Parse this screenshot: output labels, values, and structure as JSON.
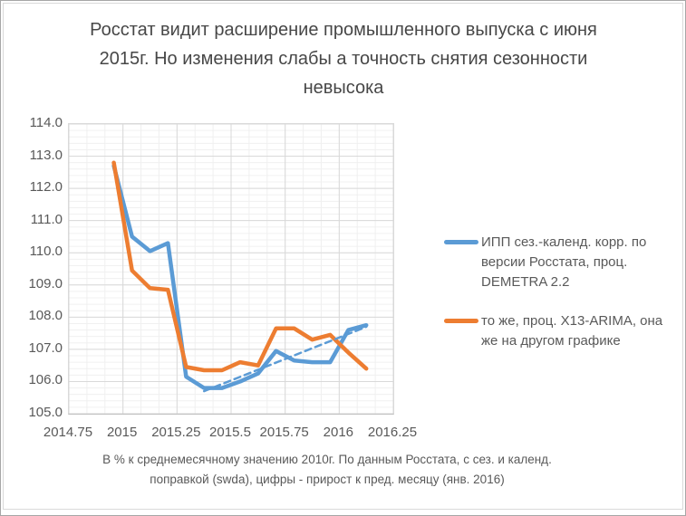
{
  "title": "Росстат видит расширение промышленного выпуска с июня 2015г. Но изменения слабы а точность снятия сезонности невысока",
  "footnote": {
    "line1": "В % к среднемесячному значению 2010г. По данным Росстата, с сез. и календ.",
    "line2": "поправкой (swda), цифры - прирост к пред. месяцу (янв. 2016)"
  },
  "legend": {
    "position": "right",
    "items": [
      {
        "label": "ИПП сез.-календ. корр. по версии Росстата, проц. DEMETRA 2.2",
        "color": "#5B9BD5",
        "style": "solid"
      },
      {
        "label": "то же, проц. X13-ARIMA, она же на другом графике",
        "color": "#ED7D31",
        "style": "solid"
      }
    ]
  },
  "colors": {
    "series_blue": "#5B9BD5",
    "series_orange": "#ED7D31",
    "major_grid": "#d9d9d9",
    "minor_grid": "#f0f0f0",
    "text_gray": "#595959"
  },
  "chart_data": {
    "type": "line",
    "title": "Росстат видит расширение промышленного выпуска с июня 2015г. Но изменения слабы а точность снятия сезонности невысока",
    "xlabel": "",
    "ylabel": "",
    "xlim": [
      2014.75,
      2016.25
    ],
    "ylim": [
      105.0,
      114.0
    ],
    "x_major_step": 0.25,
    "x_minor_step": 0.0833333,
    "y_major_step": 1.0,
    "y_minor_step": 0.2,
    "grid": "major+minor",
    "x_ticks": [
      {
        "value": 2014.75,
        "label": "2014.75"
      },
      {
        "value": 2015.0,
        "label": "2015"
      },
      {
        "value": 2015.25,
        "label": "2015.25"
      },
      {
        "value": 2015.5,
        "label": "2015.5"
      },
      {
        "value": 2015.75,
        "label": "2015.75"
      },
      {
        "value": 2016.0,
        "label": "2016"
      },
      {
        "value": 2016.25,
        "label": "2016.25"
      }
    ],
    "y_ticks": [
      {
        "value": 114.0,
        "label": "114.0"
      },
      {
        "value": 113.0,
        "label": "113.0"
      },
      {
        "value": 112.0,
        "label": "112.0"
      },
      {
        "value": 111.0,
        "label": "111.0"
      },
      {
        "value": 110.0,
        "label": "110.0"
      },
      {
        "value": 109.0,
        "label": "109.0"
      },
      {
        "value": 108.0,
        "label": "108.0"
      },
      {
        "value": 107.0,
        "label": "107.0"
      },
      {
        "value": 106.0,
        "label": "106.0"
      },
      {
        "value": 105.0,
        "label": "105.0"
      }
    ],
    "x_months": [
      "2014-12",
      "2015-01",
      "2015-02",
      "2015-03",
      "2015-04",
      "2015-05",
      "2015-06",
      "2015-07",
      "2015-08",
      "2015-09",
      "2015-10",
      "2015-11",
      "2015-12",
      "2016-01",
      "2016-02"
    ],
    "x": [
      2014.958,
      2015.042,
      2015.125,
      2015.208,
      2015.292,
      2015.375,
      2015.458,
      2015.542,
      2015.625,
      2015.708,
      2015.792,
      2015.875,
      2015.958,
      2016.042,
      2016.125
    ],
    "series": [
      {
        "name": "ИПП сез.-календ. корр. по версии Росстата, проц. DEMETRA 2.2",
        "color": "#5B9BD5",
        "style": "solid",
        "width": 4.5,
        "values": [
          112.7,
          110.5,
          110.05,
          110.3,
          106.15,
          105.8,
          105.8,
          106.0,
          106.25,
          106.95,
          106.65,
          106.6,
          106.6,
          107.6,
          107.75
        ]
      },
      {
        "name": "то же, проц. X13-ARIMA, она же на другом графике",
        "color": "#ED7D31",
        "style": "solid",
        "width": 4.5,
        "values": [
          112.8,
          109.45,
          108.9,
          108.85,
          106.45,
          106.35,
          106.35,
          106.6,
          106.5,
          107.65,
          107.65,
          107.3,
          107.45,
          106.9,
          106.4
        ]
      },
      {
        "name": "линейный тренд (пунктир, без легенды)",
        "color": "#5B9BD5",
        "style": "dashed",
        "width": 2.5,
        "x": [
          2015.375,
          2016.125
        ],
        "values": [
          105.7,
          107.7
        ]
      }
    ]
  }
}
